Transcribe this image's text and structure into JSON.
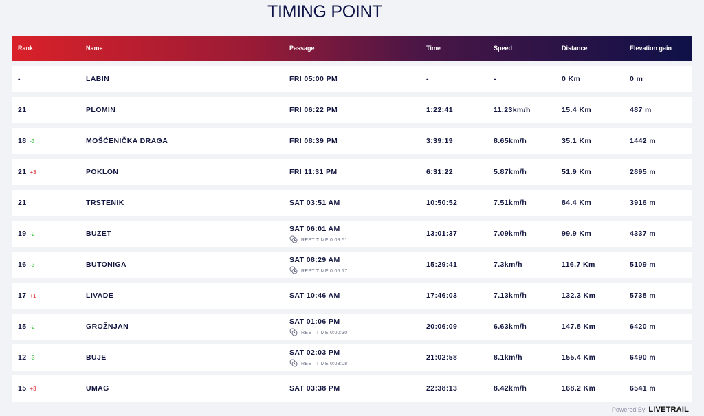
{
  "title": "TIMING POINT",
  "columns": {
    "rank": "Rank",
    "name": "Name",
    "passage": "Passage",
    "time": "Time",
    "speed": "Speed",
    "distance": "Distance",
    "elevation": "Elevation gain"
  },
  "rows": [
    {
      "rank": "-",
      "delta": "",
      "name": "LABIN",
      "passage": "FRI 05:00 PM",
      "rest": "",
      "time": "-",
      "speed": "-",
      "distance": "0 Km",
      "elevation": "0 m"
    },
    {
      "rank": "21",
      "delta": "",
      "name": "PLOMIN",
      "passage": "FRI 06:22 PM",
      "rest": "",
      "time": "1:22:41",
      "speed": "11.23km/h",
      "distance": "15.4 Km",
      "elevation": "487 m"
    },
    {
      "rank": "18",
      "delta": "-3",
      "name": "MOŠĆENIČKA DRAGA",
      "passage": "FRI 08:39 PM",
      "rest": "",
      "time": "3:39:19",
      "speed": "8.65km/h",
      "distance": "35.1 Km",
      "elevation": "1442 m"
    },
    {
      "rank": "21",
      "delta": "+3",
      "name": "POKLON",
      "passage": "FRI 11:31 PM",
      "rest": "",
      "time": "6:31:22",
      "speed": "5.87km/h",
      "distance": "51.9 Km",
      "elevation": "2895 m"
    },
    {
      "rank": "21",
      "delta": "",
      "name": "TRSTENIK",
      "passage": "SAT 03:51 AM",
      "rest": "",
      "time": "10:50:52",
      "speed": "7.51km/h",
      "distance": "84.4 Km",
      "elevation": "3916 m"
    },
    {
      "rank": "19",
      "delta": "-2",
      "name": "BUZET",
      "passage": "SAT 06:01 AM",
      "rest": "REST TIME 0:09:51",
      "time": "13:01:37",
      "speed": "7.09km/h",
      "distance": "99.9 Km",
      "elevation": "4337 m"
    },
    {
      "rank": "16",
      "delta": "-3",
      "name": "BUTONIGA",
      "passage": "SAT 08:29 AM",
      "rest": "REST TIME 0:05:17",
      "time": "15:29:41",
      "speed": "7.3km/h",
      "distance": "116.7 Km",
      "elevation": "5109 m"
    },
    {
      "rank": "17",
      "delta": "+1",
      "name": "LIVADE",
      "passage": "SAT 10:46 AM",
      "rest": "",
      "time": "17:46:03",
      "speed": "7.13km/h",
      "distance": "132.3 Km",
      "elevation": "5738 m"
    },
    {
      "rank": "15",
      "delta": "-2",
      "name": "GROŽNJAN",
      "passage": "SAT 01:06 PM",
      "rest": "REST TIME 0:00:30",
      "time": "20:06:09",
      "speed": "6.63km/h",
      "distance": "147.8 Km",
      "elevation": "6420 m"
    },
    {
      "rank": "12",
      "delta": "-3",
      "name": "BUJE",
      "passage": "SAT 02:03 PM",
      "rest": "REST TIME 0:03:08",
      "time": "21:02:58",
      "speed": "8.1km/h",
      "distance": "155.4 Km",
      "elevation": "6490 m"
    },
    {
      "rank": "15",
      "delta": "+3",
      "name": "UMAG",
      "passage": "SAT 03:38 PM",
      "rest": "",
      "time": "22:38:13",
      "speed": "8.42km/h",
      "distance": "168.2 Km",
      "elevation": "6541 m"
    }
  ],
  "footer": {
    "powered_by": "Powered By",
    "logo_text": "LIVETRAIL"
  },
  "colors": {
    "delta_up": "#2eb82e",
    "delta_down": "#e0232b",
    "header_start": "#d92129",
    "header_end": "#0e1148"
  }
}
